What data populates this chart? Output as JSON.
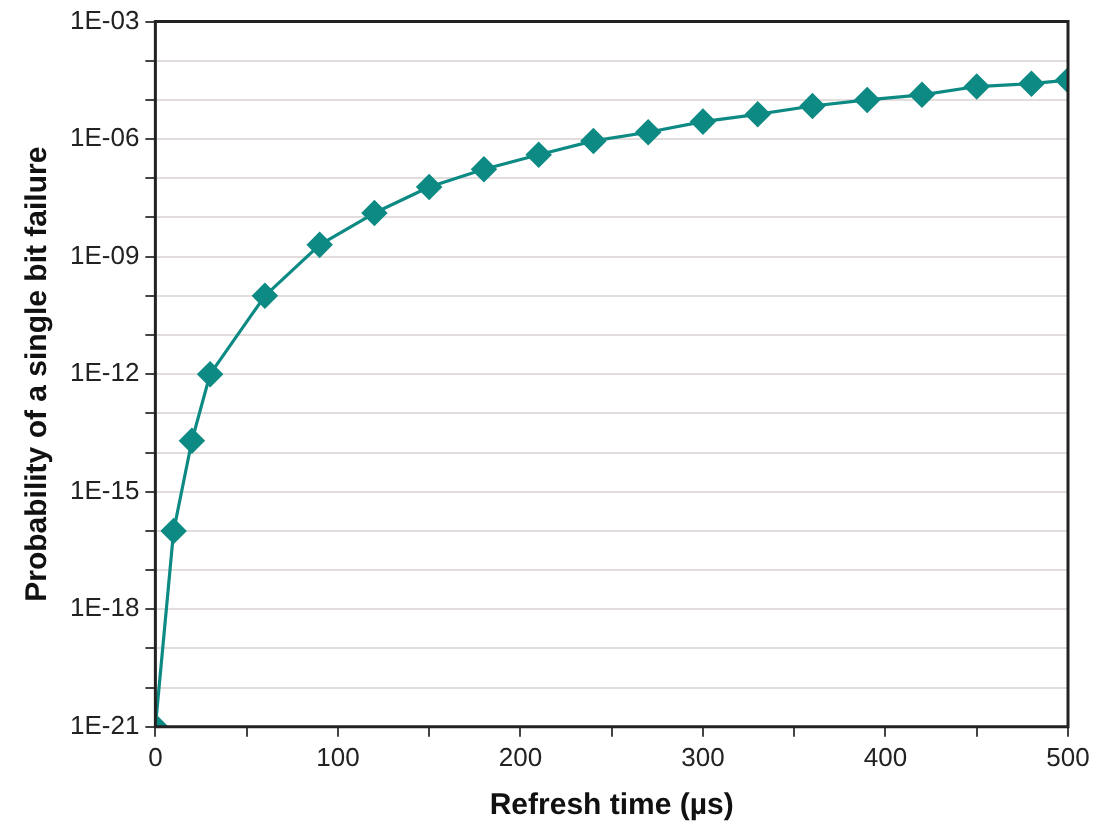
{
  "chart_data": {
    "type": "line",
    "xlabel": "Refresh time (µs)",
    "ylabel": "Probability of a single bit failure",
    "x": [
      0,
      10,
      20,
      30,
      60,
      90,
      120,
      150,
      180,
      210,
      240,
      270,
      300,
      330,
      360,
      390,
      420,
      450,
      480,
      500
    ],
    "series": [
      {
        "color": "#0e8a84",
        "values": [
          1e-21,
          1e-16,
          2e-14,
          1e-12,
          1e-10,
          2e-09,
          1.3e-08,
          6e-08,
          1.7e-07,
          4e-07,
          9e-07,
          1.5e-06,
          2.8e-06,
          4.3e-06,
          7e-06,
          1e-05,
          1.35e-05,
          2.2e-05,
          2.6e-05,
          3.2e-05
        ]
      }
    ],
    "log": "y",
    "grid": "y",
    "marker": "diamond",
    "line_style": "solid",
    "legend": false,
    "xlim": [
      0,
      500
    ],
    "xticks": [
      0,
      {
        "value": 50,
        "label": null
      },
      100,
      {
        "value": 150,
        "label": null
      },
      200,
      {
        "value": 250,
        "label": null
      },
      300,
      {
        "value": 350,
        "label": null
      },
      400,
      {
        "value": 450,
        "label": null
      },
      500
    ],
    "ylim": [
      1e-21,
      0.001
    ],
    "yticks": [
      {
        "value": 1e-21,
        "label": "1E-21"
      },
      {
        "value": 1e-20,
        "label": null
      },
      {
        "value": 1e-19,
        "label": null
      },
      {
        "value": 1e-18,
        "label": "1E-18"
      },
      {
        "value": 1e-17,
        "label": null
      },
      {
        "value": 1e-16,
        "label": null
      },
      {
        "value": 1e-15,
        "label": "1E-15"
      },
      {
        "value": 1e-14,
        "label": null
      },
      {
        "value": 1e-13,
        "label": null
      },
      {
        "value": 1e-12,
        "label": "1E-12"
      },
      {
        "value": 1e-11,
        "label": null
      },
      {
        "value": 1e-10,
        "label": null
      },
      {
        "value": 1e-09,
        "label": "1E-09"
      },
      {
        "value": 1e-08,
        "label": null
      },
      {
        "value": 1e-07,
        "label": null
      },
      {
        "value": 1e-06,
        "label": "1E-06"
      },
      {
        "value": 1e-05,
        "label": null
      },
      {
        "value": 0.0001,
        "label": null
      },
      {
        "value": 0.001,
        "label": "1E-03"
      }
    ]
  }
}
